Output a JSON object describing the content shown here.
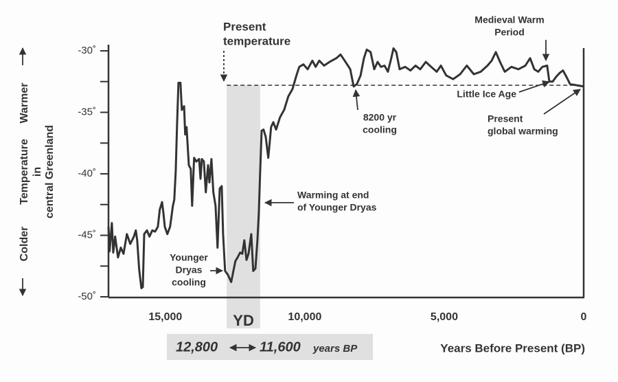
{
  "chart_data": {
    "type": "line",
    "color": "#333333",
    "xlim": [
      17040,
      0
    ],
    "ylim": [
      -50,
      -30
    ],
    "xticks": [
      {
        "value": 15000,
        "label": "15,000"
      },
      {
        "value": 10000,
        "label": "10,000"
      },
      {
        "value": 5000,
        "label": "5,000"
      },
      0
    ],
    "yticks": [
      {
        "value": -30,
        "label": "-30˚"
      },
      {
        "value": -35,
        "label": "-35˚"
      },
      {
        "value": -40,
        "label": "-40˚"
      },
      {
        "value": -45,
        "label": "-45˚"
      },
      {
        "value": -50,
        "label": "-50˚"
      }
    ],
    "minor_yticks": [
      -32.5,
      -37.5,
      -42.5,
      -47.5
    ],
    "x_label": "Years Before Present (BP)",
    "y_label": [
      "Temperature",
      "in",
      "central Greenland"
    ],
    "y_top": "Warmer",
    "y_bottom": "Colder",
    "reference_line": {
      "value": -32.8,
      "label": [
        "Present",
        "temperature"
      ]
    },
    "band": {
      "from": {
        "value": 12800,
        "label": "12,800"
      },
      "to": {
        "value": 11600,
        "label": "11,600"
      },
      "label": "YD",
      "unit": "years BP",
      "color": "#e0e0e0"
    },
    "annotations": [
      {
        "lines": [
          "Medieval Warm",
          "Period"
        ]
      },
      {
        "lines": [
          "Little Ice Age"
        ]
      },
      {
        "lines": [
          "8200 yr",
          "cooling"
        ]
      },
      {
        "lines": [
          "Present",
          "global warming"
        ]
      },
      {
        "lines": [
          "Warming at end",
          "of Younger Dryas"
        ]
      },
      {
        "lines": [
          "Younger",
          "Dryas",
          "cooling"
        ]
      }
    ],
    "x": [
      17040,
      17000,
      16920,
      16870,
      16800,
      16700,
      16600,
      16500,
      16380,
      16260,
      16130,
      16060,
      16010,
      15940,
      15860,
      15810,
      15760,
      15660,
      15570,
      15470,
      15370,
      15270,
      15200,
      15120,
      15070,
      15020,
      14930,
      14830,
      14730,
      14680,
      14630,
      14580,
      14530,
      14460,
      14410,
      14330,
      14290,
      14240,
      14160,
      14090,
      14040,
      13970,
      13890,
      13790,
      13740,
      13690,
      13620,
      13550,
      13470,
      13420,
      13350,
      13280,
      13200,
      13130,
      13050,
      12980,
      12930,
      12860,
      12760,
      12640,
      12560,
      12490,
      12410,
      12320,
      12240,
      12170,
      12090,
      12020,
      11920,
      11850,
      11770,
      11700,
      11650,
      11600,
      11550,
      11480,
      11400,
      11310,
      11210,
      11130,
      11030,
      10890,
      10740,
      10590,
      10440,
      10300,
      10200,
      10050,
      9900,
      9730,
      9610,
      9480,
      9310,
      9110,
      8870,
      8720,
      8570,
      8370,
      8250,
      8130,
      8000,
      7880,
      7780,
      7640,
      7510,
      7390,
      7270,
      7140,
      7020,
      6900,
      6820,
      6720,
      6600,
      6400,
      6210,
      6030,
      5860,
      5660,
      5470,
      5270,
      5120,
      4930,
      4680,
      4430,
      4190,
      3940,
      3690,
      3450,
      3300,
      3150,
      3000,
      2830,
      2590,
      2340,
      2090,
      1920,
      1770,
      1630,
      1480,
      1310,
      1230,
      1110,
      985,
      860,
      740,
      620,
      490,
      250,
      0
    ],
    "values": [
      -44.3,
      -46.3,
      -44.0,
      -46.4,
      -45.1,
      -46.8,
      -46.0,
      -46.5,
      -44.9,
      -45.7,
      -45.1,
      -44.6,
      -45.4,
      -47.8,
      -49.3,
      -49.2,
      -44.9,
      -44.6,
      -45.1,
      -44.6,
      -44.7,
      -44.3,
      -42.9,
      -42.3,
      -43.2,
      -44.3,
      -44.9,
      -44.3,
      -42.6,
      -42.1,
      -39.8,
      -35.9,
      -32.6,
      -32.6,
      -34.8,
      -34.5,
      -36.8,
      -36.2,
      -39.3,
      -39.6,
      -42.6,
      -38.7,
      -39.0,
      -38.8,
      -40.4,
      -38.8,
      -39.0,
      -41.5,
      -39.3,
      -40.7,
      -38.8,
      -41.5,
      -42.6,
      -46.0,
      -41.2,
      -41.0,
      -44.9,
      -47.9,
      -48.2,
      -48.8,
      -47.9,
      -47.1,
      -46.8,
      -46.4,
      -46.5,
      -45.4,
      -47.0,
      -46.5,
      -44.9,
      -47.9,
      -47.7,
      -45.4,
      -43.2,
      -39.8,
      -36.5,
      -36.4,
      -37.0,
      -38.7,
      -36.2,
      -35.8,
      -36.4,
      -35.4,
      -34.8,
      -33.7,
      -33.1,
      -32.0,
      -31.3,
      -31.1,
      -31.5,
      -30.8,
      -31.3,
      -30.8,
      -31.2,
      -30.9,
      -30.6,
      -30.3,
      -30.8,
      -31.5,
      -32.9,
      -32.7,
      -32.0,
      -30.6,
      -29.9,
      -30.1,
      -31.5,
      -30.9,
      -31.3,
      -31.2,
      -31.7,
      -30.6,
      -29.8,
      -30.1,
      -31.5,
      -31.3,
      -31.6,
      -31.2,
      -31.5,
      -30.9,
      -31.3,
      -31.7,
      -31.2,
      -32.0,
      -32.3,
      -31.9,
      -31.2,
      -31.9,
      -31.7,
      -31.2,
      -30.8,
      -30.1,
      -30.9,
      -31.7,
      -31.3,
      -31.5,
      -31.2,
      -30.6,
      -31.5,
      -31.7,
      -31.3,
      -31.2,
      -32.5,
      -32.5,
      -32.1,
      -31.8,
      -31.6,
      -32.1,
      -32.7,
      -32.8,
      -32.9
    ]
  }
}
